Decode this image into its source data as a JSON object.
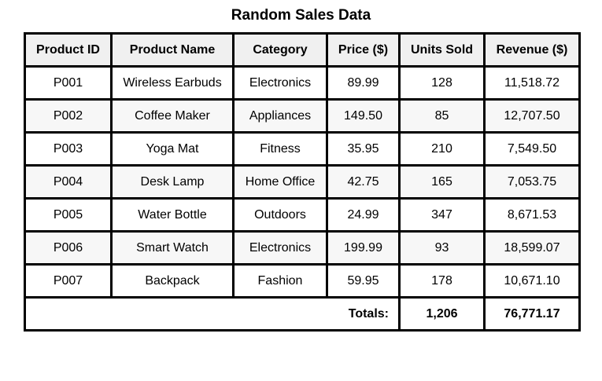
{
  "chart_data": {
    "type": "table",
    "title": "Random Sales Data",
    "columns": [
      "Product ID",
      "Product Name",
      "Category",
      "Price ($)",
      "Units Sold",
      "Revenue ($)"
    ],
    "rows": [
      [
        "P001",
        "Wireless Earbuds",
        "Electronics",
        "89.99",
        "128",
        "11,518.72"
      ],
      [
        "P002",
        "Coffee Maker",
        "Appliances",
        "149.50",
        "85",
        "12,707.50"
      ],
      [
        "P003",
        "Yoga Mat",
        "Fitness",
        "35.95",
        "210",
        "7,549.50"
      ],
      [
        "P004",
        "Desk Lamp",
        "Home Office",
        "42.75",
        "165",
        "7,053.75"
      ],
      [
        "P005",
        "Water Bottle",
        "Outdoors",
        "24.99",
        "347",
        "8,671.53"
      ],
      [
        "P006",
        "Smart Watch",
        "Electronics",
        "199.99",
        "93",
        "18,599.07"
      ],
      [
        "P007",
        "Backpack",
        "Fashion",
        "59.95",
        "178",
        "10,671.10"
      ]
    ],
    "totals": {
      "label": "Totals:",
      "units_sold": "1,206",
      "revenue": "76,771.17"
    }
  }
}
